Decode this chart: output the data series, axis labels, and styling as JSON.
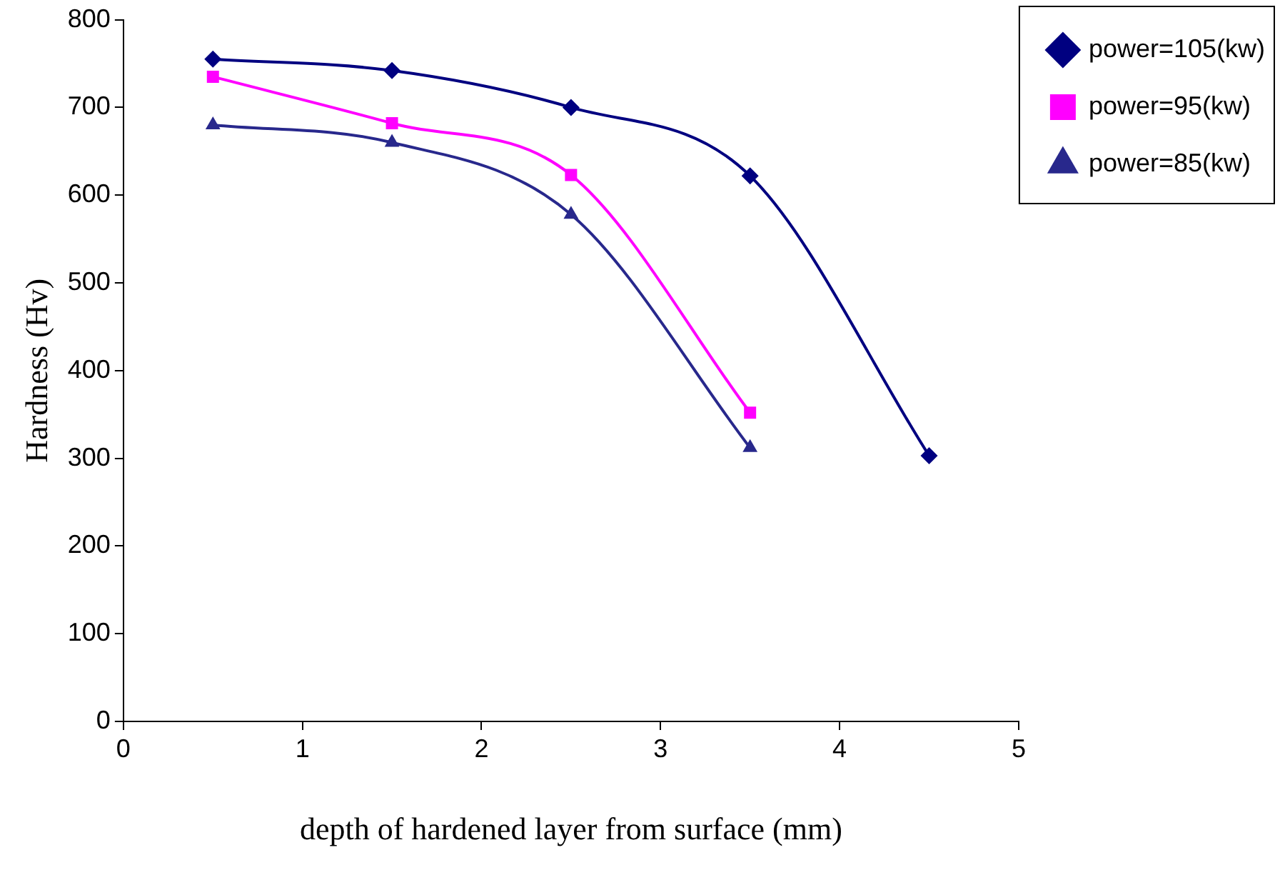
{
  "chart_data": {
    "type": "line",
    "xlabel": "depth of hardened layer from surface (mm)",
    "ylabel": "Hardness (Hv)",
    "x": [
      0.5,
      1.5,
      2.5,
      3.5,
      4.5
    ],
    "series": [
      {
        "name": "power=105(kw)",
        "color": "#000080",
        "marker": "diamond",
        "values": [
          755,
          742,
          700,
          622,
          303
        ]
      },
      {
        "name": "power=95(kw)",
        "color": "#ff00ff",
        "marker": "square",
        "values": [
          735,
          682,
          623,
          352,
          null
        ]
      },
      {
        "name": "power=85(kw)",
        "color": "#28288c",
        "marker": "triangle",
        "values": [
          680,
          660,
          578,
          312,
          null
        ]
      }
    ],
    "xlim": [
      0,
      5
    ],
    "xticks": [
      0,
      1,
      2,
      3,
      4,
      5
    ],
    "ylim": [
      0,
      800
    ],
    "yticks": [
      0,
      100,
      200,
      300,
      400,
      500,
      600,
      700,
      800
    ],
    "grid": false,
    "legend": "top right",
    "line_style": "solid"
  }
}
